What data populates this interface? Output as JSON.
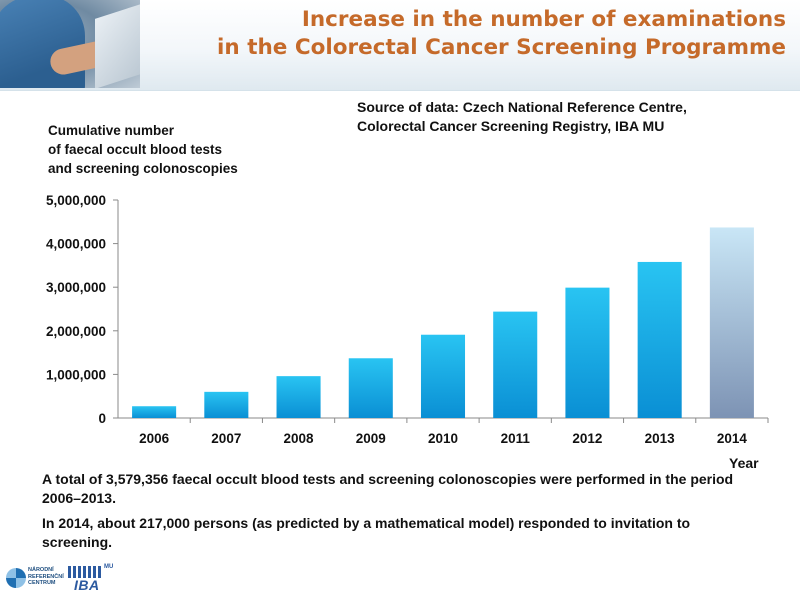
{
  "title": {
    "line1": "Increase in the number of examinations",
    "line2": "in the Colorectal Cancer Screening Programme"
  },
  "source": {
    "line1": "Source of data: Czech National Reference Centre,",
    "line2": "Colorectal Cancer Screening Registry, IBA MU"
  },
  "notes": {
    "p1": "A total of 3,579,356 faecal occult blood tests and screening colonoscopies were performed in the period 2006–2013.",
    "p2": "In 2014, about 217,000 persons (as predicted by a mathematical model) responded to invitation to screening."
  },
  "logos": {
    "nrc_lines": [
      "NÁRODNÍ",
      "REFERENČNÍ",
      "CENTRUM"
    ],
    "iba": "IBA",
    "mu": "MU"
  },
  "colors": {
    "title": "#c56a2a",
    "bar_top": "#29c4f2",
    "bar_bottom": "#0a8fd4",
    "predicted_top": "#c9e6f6",
    "predicted_bottom": "#7d93b4"
  },
  "chart_data": {
    "type": "bar",
    "title": "",
    "xlabel": "Year",
    "ylabel_lines": [
      "Cumulative number",
      "of faecal occult blood tests",
      "and screening colonoscopies"
    ],
    "categories": [
      "2006",
      "2007",
      "2008",
      "2009",
      "2010",
      "2011",
      "2012",
      "2013",
      "2014"
    ],
    "values": [
      270000,
      600000,
      960000,
      1370000,
      1910000,
      2440000,
      2990000,
      3579356,
      4370000
    ],
    "predicted": [
      false,
      false,
      false,
      false,
      false,
      false,
      false,
      false,
      true
    ],
    "ylim": [
      0,
      5000000
    ],
    "yticks": [
      0,
      1000000,
      2000000,
      3000000,
      4000000,
      5000000
    ],
    "ytick_labels": [
      "0",
      "1,000,000",
      "2,000,000",
      "3,000,000",
      "4,000,000",
      "5,000,000"
    ],
    "grid": false,
    "legend": "none"
  }
}
